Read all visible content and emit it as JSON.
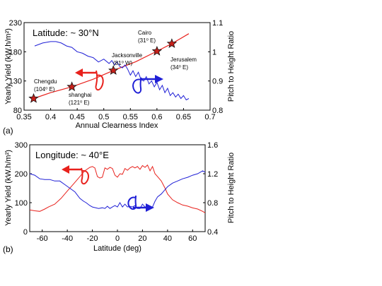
{
  "chart_data": [
    {
      "type": "line",
      "panel_label": "(a)",
      "title": "Latitude: ~ 30°N",
      "xlabel": "Annual Clearness Index",
      "ylabel_left": "Yearly Yield (kW.h/m²)",
      "ylabel_right": "Pitch to Height Ratio",
      "xlim": [
        0.35,
        0.7
      ],
      "ylim_left": [
        80,
        230
      ],
      "ylim_right": [
        0.8,
        1.1
      ],
      "xticks": [
        "0.35",
        "0.4",
        "0.45",
        "0.5",
        "0.55",
        "0.6",
        "0.65",
        "0.7"
      ],
      "yticks_left": [
        "80",
        "130",
        "180",
        "230"
      ],
      "yticks_right": [
        "0.8",
        "0.9",
        "1",
        "1.1"
      ],
      "series": [
        {
          "axis": "left",
          "color": "#e8211c",
          "x": [
            0.368,
            0.4,
            0.44,
            0.48,
            0.518,
            0.56,
            0.6,
            0.628,
            0.66
          ],
          "y": [
            100,
            110,
            120,
            133,
            148,
            163,
            181,
            194,
            211
          ]
        },
        {
          "axis": "right",
          "color": "#1f1fd6",
          "x": [
            0.37,
            0.385,
            0.4,
            0.41,
            0.42,
            0.43,
            0.44,
            0.45,
            0.46,
            0.47,
            0.48,
            0.49,
            0.5,
            0.51,
            0.515,
            0.52,
            0.525,
            0.53,
            0.535,
            0.54,
            0.545,
            0.55,
            0.555,
            0.56,
            0.565,
            0.57,
            0.575,
            0.58,
            0.585,
            0.59,
            0.595,
            0.6,
            0.605,
            0.61,
            0.615,
            0.62,
            0.625,
            0.63,
            0.635,
            0.64,
            0.645,
            0.65,
            0.655,
            0.66
          ],
          "y": [
            1.02,
            1.03,
            1.035,
            1.035,
            1.03,
            1.02,
            1.015,
            1.0,
            0.995,
            0.985,
            0.98,
            0.965,
            0.975,
            0.96,
            0.97,
            0.955,
            0.965,
            0.95,
            0.945,
            0.955,
            0.94,
            0.92,
            0.935,
            0.915,
            0.93,
            0.905,
            0.9,
            0.915,
            0.89,
            0.9,
            0.88,
            0.895,
            0.87,
            0.885,
            0.86,
            0.875,
            0.85,
            0.86,
            0.845,
            0.855,
            0.84,
            0.85,
            0.835,
            0.84
          ]
        }
      ],
      "cities": [
        {
          "name": "Chengdu",
          "lon": "(104⁰ E)",
          "x": 0.368,
          "y": 100
        },
        {
          "name": "shanghai",
          "lon": "(121⁰ E)",
          "x": 0.44,
          "y": 120
        },
        {
          "name": "Jacksonville",
          "lon": "(81⁰ W)",
          "x": 0.518,
          "y": 148
        },
        {
          "name": "Cairo",
          "lon": "(31⁰ E)",
          "x": 0.6,
          "y": 181
        },
        {
          "name": "Jerusalem",
          "lon": "(34⁰ E)",
          "x": 0.628,
          "y": 194
        }
      ]
    },
    {
      "type": "line",
      "panel_label": "(b)",
      "title": "Longitude: ~ 40°E",
      "xlabel": "Latitude (deg)",
      "ylabel_left": "Yearly Yield (kW.h/m²)",
      "ylabel_right": "Pitch to Height Ratio",
      "xlim": [
        -70,
        70
      ],
      "ylim_left": [
        0,
        300
      ],
      "ylim_right": [
        0.4,
        1.6
      ],
      "xticks": [
        "-60",
        "-40",
        "-20",
        "0",
        "20",
        "40",
        "60"
      ],
      "yticks_left": [
        "0",
        "100",
        "200",
        "300"
      ],
      "yticks_right": [
        "0.4",
        "0.8",
        "1.2",
        "1.6"
      ],
      "series": [
        {
          "axis": "left",
          "color": "#e8211c",
          "x": [
            -70,
            -66,
            -62,
            -58,
            -55,
            -50,
            -45,
            -40,
            -35,
            -30,
            -26,
            -22,
            -20,
            -18,
            -16,
            -14,
            -12,
            -10,
            -8,
            -6,
            -4,
            -2,
            0,
            2,
            4,
            6,
            8,
            10,
            12,
            14,
            16,
            18,
            20,
            22,
            24,
            26,
            28,
            30,
            32,
            35,
            38,
            40,
            44,
            48,
            52,
            56,
            60,
            64,
            68,
            70
          ],
          "y": [
            75,
            72,
            70,
            78,
            85,
            95,
            115,
            140,
            165,
            190,
            210,
            222,
            225,
            220,
            190,
            185,
            188,
            220,
            215,
            222,
            218,
            195,
            188,
            200,
            198,
            218,
            212,
            220,
            225,
            220,
            225,
            215,
            228,
            222,
            230,
            210,
            225,
            200,
            190,
            175,
            150,
            130,
            110,
            100,
            92,
            88,
            82,
            78,
            70,
            65
          ]
        },
        {
          "axis": "right",
          "color": "#1f1fd6",
          "x": [
            -70,
            -66,
            -62,
            -58,
            -54,
            -50,
            -46,
            -42,
            -38,
            -34,
            -30,
            -27,
            -25,
            -22,
            -20,
            -15,
            -12,
            -10,
            -8,
            -6,
            -4,
            -2,
            0,
            2,
            4,
            6,
            8,
            10,
            12,
            14,
            16,
            18,
            20,
            22,
            24,
            26,
            28,
            30,
            32,
            35,
            38,
            40,
            44,
            48,
            52,
            56,
            60,
            64,
            68,
            70
          ],
          "y": [
            1.2,
            1.18,
            1.13,
            1.12,
            1.12,
            1.1,
            1.1,
            1.05,
            1.0,
            0.95,
            0.86,
            0.82,
            0.8,
            0.76,
            0.74,
            0.72,
            0.73,
            0.72,
            0.75,
            0.72,
            0.74,
            0.76,
            0.74,
            0.8,
            0.74,
            0.78,
            0.74,
            0.75,
            0.74,
            0.76,
            0.72,
            0.72,
            0.78,
            0.74,
            0.75,
            0.73,
            0.74,
            0.82,
            0.88,
            0.92,
            0.98,
            1.02,
            1.07,
            1.1,
            1.13,
            1.15,
            1.18,
            1.2,
            1.24,
            1.22
          ]
        }
      ]
    }
  ]
}
